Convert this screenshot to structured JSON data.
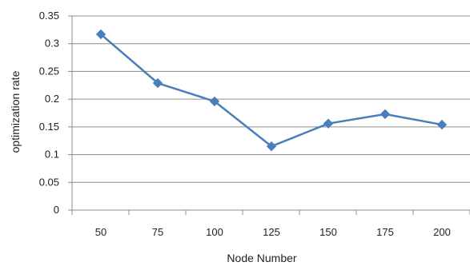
{
  "chart_data": {
    "type": "line",
    "title": "",
    "xlabel": "Node Number",
    "ylabel": "optimization rate",
    "categories": [
      "50",
      "75",
      "100",
      "125",
      "150",
      "175",
      "200"
    ],
    "series": [
      {
        "values": [
          0.317,
          0.229,
          0.196,
          0.115,
          0.156,
          0.173,
          0.154
        ]
      }
    ],
    "ylim": [
      0,
      0.35
    ],
    "y_ticks": [
      "0",
      "0.05",
      "0.1",
      "0.15",
      "0.2",
      "0.25",
      "0.3",
      "0.35"
    ],
    "grid": true,
    "legend": "none",
    "colors": {
      "line": "#4a7ebb",
      "marker": "#4a7ebb",
      "grid": "#8c8c8c",
      "axis": "#8c8c8c"
    },
    "marker": "diamond"
  }
}
